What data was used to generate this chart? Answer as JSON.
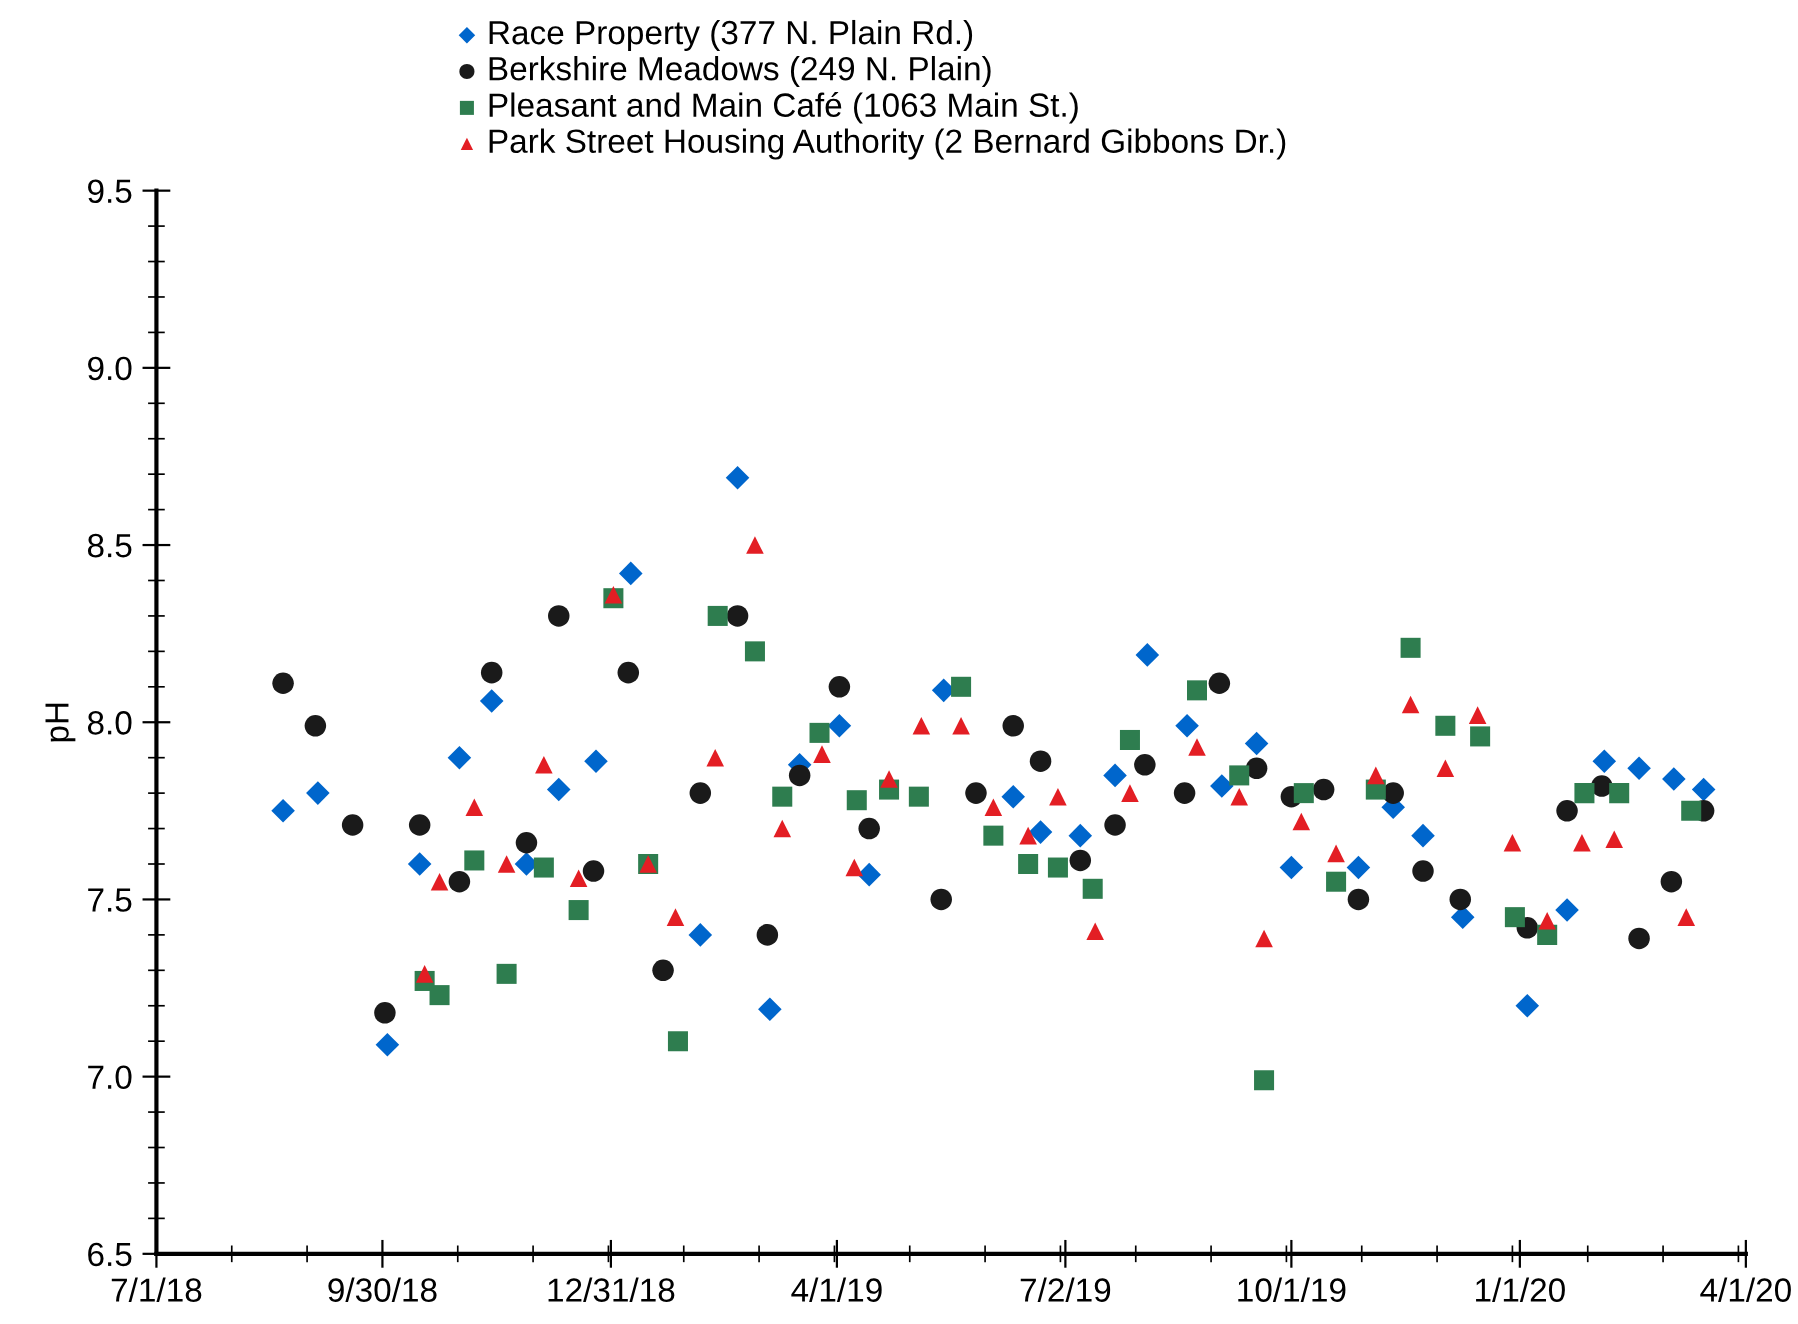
{
  "chart_data": {
    "type": "scatter",
    "ylabel": "pH",
    "legend": "top",
    "grid": false,
    "xlim": [
      "2018-07-01",
      "2020-04-01"
    ],
    "xticks": [
      {
        "value": "2018-07-01",
        "label": "7/1/18"
      },
      {
        "value": "2018-09-30",
        "label": "9/30/18"
      },
      {
        "value": "2018-12-31",
        "label": "12/31/18"
      },
      {
        "value": "2019-04-01",
        "label": "4/1/19"
      },
      {
        "value": "2019-07-02",
        "label": "7/2/19"
      },
      {
        "value": "2019-10-01",
        "label": "10/1/19"
      },
      {
        "value": "2020-01-01",
        "label": "1/1/20"
      },
      {
        "value": "2020-04-01",
        "label": "4/1/20"
      }
    ],
    "ylim": [
      6.5,
      9.5
    ],
    "yticks": [
      6.5,
      {
        "value": 7,
        "label": "7.0"
      },
      7.5,
      {
        "value": 8,
        "label": "8.0"
      },
      8.5,
      {
        "value": 9,
        "label": "9.0"
      },
      9.5
    ],
    "series": [
      {
        "name": "Race Property (377 N. Plain Rd.)",
        "color": "#0066cc",
        "marker": "diamond",
        "x": [
          "2018-08-21",
          "2018-09-04",
          "2018-10-02",
          "2018-10-15",
          "2018-10-31",
          "2018-11-13",
          "2018-11-27",
          "2018-12-10",
          "2018-12-25",
          "2019-01-08",
          "2019-02-05",
          "2019-02-20",
          "2019-03-05",
          "2019-03-17",
          "2019-04-02",
          "2019-04-14",
          "2019-05-14",
          "2019-06-11",
          "2019-06-22",
          "2019-07-08",
          "2019-07-22",
          "2019-08-04",
          "2019-08-20",
          "2019-09-03",
          "2019-09-17",
          "2019-10-01",
          "2019-10-28",
          "2019-11-11",
          "2019-11-23",
          "2019-12-09",
          "2020-01-04",
          "2020-01-20",
          "2020-02-04",
          "2020-02-18",
          "2020-03-03",
          "2020-03-15"
        ],
        "values": [
          7.75,
          7.8,
          7.09,
          7.6,
          7.9,
          8.06,
          7.6,
          7.81,
          7.89,
          8.42,
          7.4,
          8.69,
          7.19,
          7.88,
          7.99,
          7.57,
          8.09,
          7.79,
          7.69,
          7.68,
          7.85,
          8.19,
          7.99,
          7.82,
          7.94,
          7.59,
          7.59,
          7.76,
          7.68,
          7.45,
          7.2,
          7.47,
          7.89,
          7.87,
          7.84,
          7.81
        ]
      },
      {
        "name": "Berkshire Meadows (249 N. Plain)",
        "color": "#1a1a1a",
        "marker": "circle",
        "x": [
          "2018-08-21",
          "2018-09-03",
          "2018-09-18",
          "2018-10-01",
          "2018-10-15",
          "2018-10-31",
          "2018-11-13",
          "2018-11-27",
          "2018-12-10",
          "2018-12-24",
          "2019-01-07",
          "2019-01-21",
          "2019-02-05",
          "2019-02-20",
          "2019-03-04",
          "2019-03-17",
          "2019-04-02",
          "2019-04-14",
          "2019-05-13",
          "2019-05-27",
          "2019-06-11",
          "2019-06-22",
          "2019-07-08",
          "2019-07-22",
          "2019-08-03",
          "2019-08-19",
          "2019-09-02",
          "2019-09-17",
          "2019-10-01",
          "2019-10-14",
          "2019-10-28",
          "2019-11-11",
          "2019-11-23",
          "2019-12-08",
          "2020-01-04",
          "2020-01-20",
          "2020-02-03",
          "2020-02-18",
          "2020-03-02",
          "2020-03-15"
        ],
        "values": [
          8.11,
          7.99,
          7.71,
          7.18,
          7.71,
          7.55,
          8.14,
          7.66,
          8.3,
          7.58,
          8.14,
          7.3,
          7.8,
          8.3,
          7.4,
          7.85,
          8.1,
          7.7,
          7.5,
          7.8,
          7.99,
          7.89,
          7.61,
          7.71,
          7.88,
          7.8,
          8.11,
          7.87,
          7.79,
          7.81,
          7.5,
          7.8,
          7.58,
          7.5,
          7.42,
          7.75,
          7.82,
          7.39,
          7.55,
          7.75
        ]
      },
      {
        "name": "Pleasant and Main Café (1063 Main St.)",
        "color": "#2e7d4f",
        "marker": "square",
        "x": [
          "2018-10-17",
          "2018-10-23",
          "2018-11-06",
          "2018-11-19",
          "2018-12-04",
          "2018-12-18",
          "2019-01-01",
          "2019-01-15",
          "2019-01-27",
          "2019-02-12",
          "2019-02-27",
          "2019-03-10",
          "2019-03-25",
          "2019-04-09",
          "2019-04-22",
          "2019-05-04",
          "2019-05-21",
          "2019-06-03",
          "2019-06-17",
          "2019-06-29",
          "2019-07-13",
          "2019-07-28",
          "2019-08-24",
          "2019-09-10",
          "2019-09-20",
          "2019-10-06",
          "2019-10-19",
          "2019-11-04",
          "2019-11-18",
          "2019-12-02",
          "2019-12-16",
          "2019-12-30",
          "2020-01-12",
          "2020-01-27",
          "2020-02-10",
          "2020-03-10"
        ],
        "values": [
          7.27,
          7.23,
          7.61,
          7.29,
          7.59,
          7.47,
          8.35,
          7.6,
          7.1,
          8.3,
          8.2,
          7.79,
          7.97,
          7.78,
          7.81,
          7.79,
          8.1,
          7.68,
          7.6,
          7.59,
          7.53,
          7.95,
          8.09,
          7.85,
          6.99,
          7.8,
          7.55,
          7.81,
          8.21,
          7.99,
          7.96,
          7.45,
          7.4,
          7.8,
          7.8,
          7.75
        ]
      },
      {
        "name": "Park Street Housing Authority (2 Bernard Gibbons Dr.)",
        "color": "#e31e24",
        "marker": "triangle",
        "x": [
          "2018-10-17",
          "2018-10-23",
          "2018-11-06",
          "2018-11-19",
          "2018-12-04",
          "2018-12-18",
          "2019-01-01",
          "2019-01-15",
          "2019-01-26",
          "2019-02-11",
          "2019-02-27",
          "2019-03-10",
          "2019-03-26",
          "2019-04-08",
          "2019-04-22",
          "2019-05-05",
          "2019-05-21",
          "2019-06-03",
          "2019-06-17",
          "2019-06-29",
          "2019-07-14",
          "2019-07-28",
          "2019-08-24",
          "2019-09-10",
          "2019-09-20",
          "2019-10-05",
          "2019-10-19",
          "2019-11-04",
          "2019-11-18",
          "2019-12-02",
          "2019-12-15",
          "2019-12-29",
          "2020-01-12",
          "2020-01-26",
          "2020-02-08",
          "2020-03-08"
        ],
        "values": [
          7.29,
          7.55,
          7.76,
          7.6,
          7.88,
          7.56,
          8.36,
          7.6,
          7.45,
          7.9,
          8.5,
          7.7,
          7.91,
          7.59,
          7.84,
          7.99,
          7.99,
          7.76,
          7.68,
          7.79,
          7.41,
          7.8,
          7.93,
          7.79,
          7.39,
          7.72,
          7.63,
          7.85,
          8.05,
          7.87,
          8.02,
          7.66,
          7.44,
          7.66,
          7.67,
          7.45
        ]
      }
    ]
  }
}
